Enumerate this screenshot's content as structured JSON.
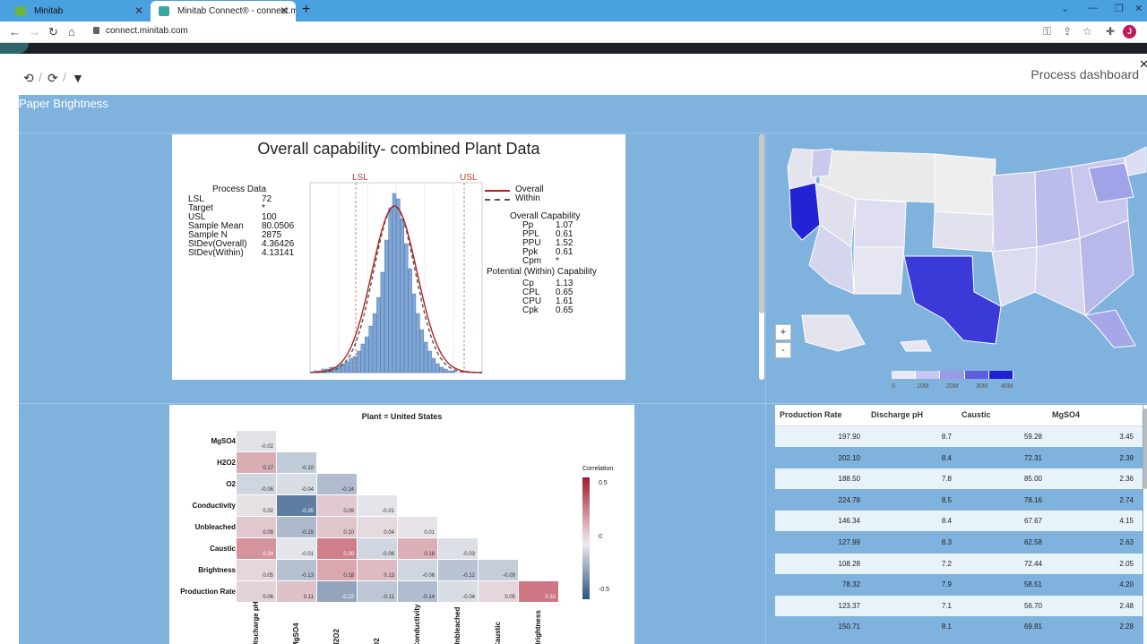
{
  "browser": {
    "tabs": [
      {
        "label": "Minitab"
      },
      {
        "label": "Minitab Connect® - connect.mini"
      }
    ],
    "url": "connect.minitab.com",
    "avatar_letter": "J"
  },
  "toolbar": {
    "dashboard_title": "Process dashboard",
    "icons": [
      "history-icon",
      "refresh-icon",
      "filter-icon"
    ]
  },
  "dashboard": {
    "name": "Paper Brightness"
  },
  "capability": {
    "title": "Overall capability- combined Plant Data",
    "process_data_title": "Process Data",
    "process_data": [
      {
        "label": "LSL",
        "value": "72"
      },
      {
        "label": "Target",
        "value": "*"
      },
      {
        "label": "USL",
        "value": "100"
      },
      {
        "label": "Sample Mean",
        "value": "80.0506"
      },
      {
        "label": "Sample N",
        "value": "2875"
      },
      {
        "label": "StDev(Overall)",
        "value": "4.36426"
      },
      {
        "label": "StDev(Within)",
        "value": "4.13141"
      }
    ],
    "lsl_label": "LSL",
    "usl_label": "USL",
    "legend": [
      {
        "label": "Overall",
        "color": "#b22222"
      },
      {
        "label": "Within",
        "color": "#555555"
      }
    ],
    "overall_title": "Overall Capability",
    "overall": [
      {
        "label": "Pp",
        "value": "1.07"
      },
      {
        "label": "PPL",
        "value": "0.61"
      },
      {
        "label": "PPU",
        "value": "1.52"
      },
      {
        "label": "Ppk",
        "value": "0.61"
      },
      {
        "label": "Cpm",
        "value": "*"
      }
    ],
    "within_title": "Potential (Within) Capability",
    "within": [
      {
        "label": "Cp",
        "value": "1.13"
      },
      {
        "label": "CPL",
        "value": "0.65"
      },
      {
        "label": "CPU",
        "value": "1.61"
      },
      {
        "label": "Cpk",
        "value": "0.65"
      }
    ],
    "histogram": [
      1,
      1,
      2,
      2,
      3,
      3,
      4,
      5,
      6,
      8,
      9,
      12,
      16,
      20,
      26,
      33,
      42,
      56,
      74,
      92,
      100,
      97,
      86,
      72,
      58,
      44,
      33,
      24,
      17,
      12,
      8,
      5,
      3,
      2,
      1,
      1
    ]
  },
  "map": {
    "zoom_in": "+",
    "zoom_out": "-",
    "scale_labels": [
      "0",
      "10M",
      "20M",
      "30M",
      "40M"
    ],
    "scale_colors": [
      "#e9e9f5",
      "#c6c6ee",
      "#9a9ae6",
      "#5d5de0",
      "#1f1fd4"
    ]
  },
  "correlation": {
    "title": "Plant = United States",
    "legend_title": "Correlation",
    "legend_ticks": [
      "0.5",
      "0",
      "-0.5"
    ],
    "columns": [
      "Discharge pH",
      "MgSO4",
      "H2O2",
      "O2",
      "Conductivity",
      "Unbleached",
      "Caustic",
      "Brightness"
    ],
    "rows": [
      {
        "label": "MgSO4",
        "values": [
          "-0.02"
        ]
      },
      {
        "label": "H2O2",
        "values": [
          "0.17",
          "-0.10"
        ]
      },
      {
        "label": "O2",
        "values": [
          "-0.06",
          "-0.04",
          "-0.14"
        ]
      },
      {
        "label": "Conductivity",
        "values": [
          "0.02",
          "-0.35",
          "0.09",
          "-0.01"
        ]
      },
      {
        "label": "Unbleached",
        "values": [
          "0.09",
          "-0.15",
          "0.10",
          "0.04",
          "0.01"
        ]
      },
      {
        "label": "Caustic",
        "values": [
          "0.24",
          "-0.01",
          "0.30",
          "-0.06",
          "0.16",
          "-0.03"
        ]
      },
      {
        "label": "Brightness",
        "values": [
          "0.05",
          "-0.13",
          "0.18",
          "0.13",
          "-0.06",
          "-0.12",
          "-0.09"
        ]
      },
      {
        "label": "Production Rate",
        "values": [
          "0.06",
          "0.11",
          "-0.22",
          "-0.11",
          "-0.14",
          "-0.04",
          "0.05",
          "0.32"
        ]
      }
    ]
  },
  "table": {
    "headers": [
      "Production Rate",
      "Discharge pH",
      "Caustic",
      "MgSO4"
    ],
    "rows": [
      [
        "197.90",
        "8.7",
        "59.28",
        "3.45"
      ],
      [
        "202.10",
        "8.4",
        "72.31",
        "2.39"
      ],
      [
        "188.50",
        "7.8",
        "85.00",
        "2.36"
      ],
      [
        "224.78",
        "8.5",
        "78.16",
        "2.74"
      ],
      [
        "146.34",
        "8.4",
        "67.67",
        "4.15"
      ],
      [
        "127.99",
        "8.3",
        "62.58",
        "2.63"
      ],
      [
        "108.28",
        "7.2",
        "72.44",
        "2.05"
      ],
      [
        "78.32",
        "7.9",
        "58.51",
        "4.20"
      ],
      [
        "123.37",
        "7.1",
        "56.70",
        "2.48"
      ],
      [
        "150.71",
        "8.1",
        "69.81",
        "2.28"
      ]
    ]
  }
}
